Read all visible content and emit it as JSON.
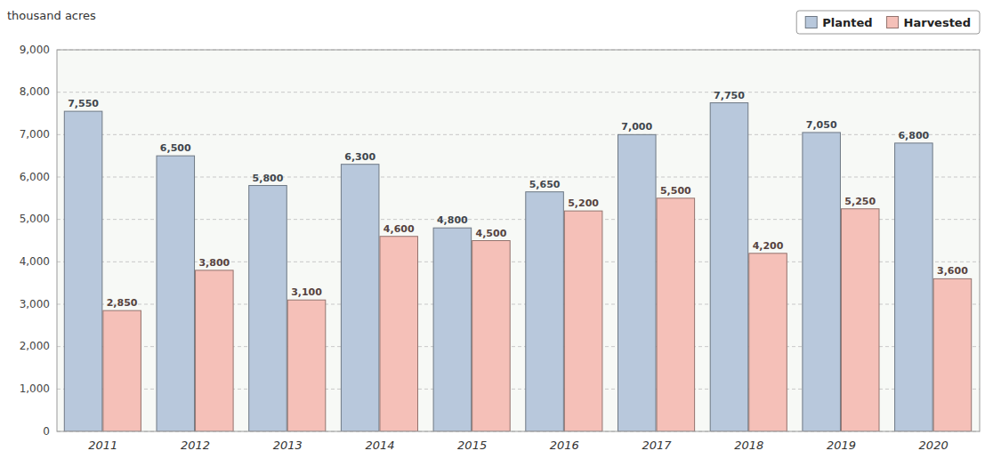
{
  "chart_data": {
    "type": "bar",
    "y_label": "thousand acres",
    "categories": [
      "2011",
      "2012",
      "2013",
      "2014",
      "2015",
      "2016",
      "2017",
      "2018",
      "2019",
      "2020"
    ],
    "series": [
      {
        "name": "Planted",
        "color": "#b8c8dc",
        "values": [
          7550,
          6500,
          5800,
          6300,
          4800,
          5650,
          7000,
          7750,
          7050,
          6800
        ],
        "value_labels": [
          "7,550",
          "6,500",
          "5,800",
          "6,300",
          "4,800",
          "5,650",
          "7,000",
          "7,750",
          "7,050",
          "6,800"
        ]
      },
      {
        "name": "Harvested",
        "color": "#f5c0b8",
        "values": [
          2850,
          3800,
          3100,
          4600,
          4500,
          5200,
          5500,
          4200,
          5250,
          3600
        ],
        "value_labels": [
          "2,850",
          "3,800",
          "3,100",
          "4,600",
          "4,500",
          "5,200",
          "5,500",
          "4,200",
          "5,250",
          "3,600"
        ]
      }
    ],
    "ylim": [
      0,
      9000
    ],
    "yticks": [
      0,
      {
        "value": 1000,
        "label": "1,000"
      },
      {
        "value": 2000,
        "label": "2,000"
      },
      {
        "value": 3000,
        "label": "3,000"
      },
      {
        "value": 4000,
        "label": "4,000"
      },
      {
        "value": 5000,
        "label": "5,000"
      },
      {
        "value": 6000,
        "label": "6,000"
      },
      {
        "value": 7000,
        "label": "7,000"
      },
      {
        "value": 8000,
        "label": "8,000"
      },
      {
        "value": 9000,
        "label": "9,000"
      }
    ],
    "grid": true,
    "legend": "upper right",
    "data_labels": true
  }
}
